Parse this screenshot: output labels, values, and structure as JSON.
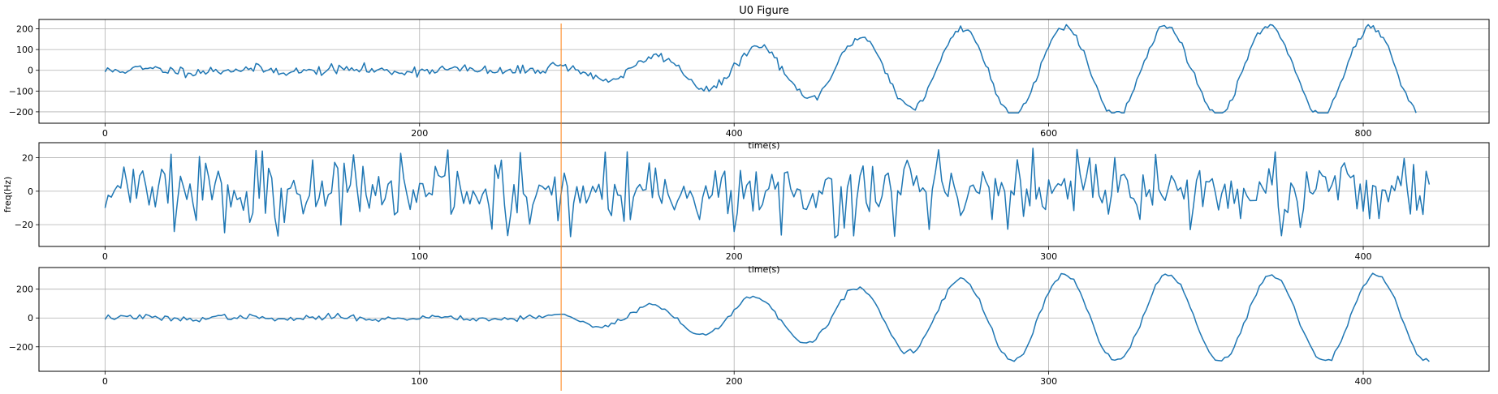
{
  "figure": {
    "title": "U0 Figure",
    "marker_color": "#ff7f0e",
    "series_color": "#1f77b4"
  },
  "chart_data": [
    {
      "type": "line",
      "title": "U0 Figure",
      "xlabel": "time(s)",
      "ylabel": "",
      "xlim": [
        -42,
        880
      ],
      "ylim": [
        -255,
        245
      ],
      "xticks": [
        0,
        200,
        400,
        600,
        800
      ],
      "yticks": [
        -200,
        -100,
        0,
        100,
        200
      ],
      "marker_x": 290,
      "grid": true,
      "series": [
        {
          "shape": "sine",
          "x_start": 0,
          "x_end": 835,
          "x_step": 1.6,
          "pre_end": 280,
          "pre_noise": 12,
          "ramp_start": 280,
          "ramp_end": 560,
          "amp_start": 20,
          "amp_end": 215,
          "period": 65,
          "phase_peak": 545,
          "clip": [
            -205,
            220
          ],
          "noise": 10,
          "seed": 11
        }
      ]
    },
    {
      "type": "line",
      "title": "",
      "xlabel": "time(s)",
      "ylabel": "freq(Hz)",
      "xlim": [
        -21,
        440
      ],
      "ylim": [
        -33,
        29
      ],
      "xticks": [
        0,
        100,
        200,
        300,
        400
      ],
      "yticks": [
        -20,
        0,
        20
      ],
      "marker_x": 146.5,
      "grid": true,
      "series": [
        {
          "shape": "noise",
          "x_start": 0,
          "x_end": 421,
          "x_step": 1.0,
          "std": 9,
          "max": 26,
          "min": -28,
          "seed": 23
        }
      ]
    },
    {
      "type": "line",
      "title": "",
      "xlabel": "",
      "ylabel": "",
      "xlim": [
        -21,
        440
      ],
      "ylim": [
        -370,
        350
      ],
      "xticks": [
        0,
        100,
        200,
        300,
        400
      ],
      "yticks": [
        -200,
        0,
        200
      ],
      "marker_x": 146.5,
      "grid": true,
      "series": [
        {
          "shape": "sine",
          "x_start": 0,
          "x_end": 421,
          "x_step": 1.0,
          "pre_end": 140,
          "pre_noise": 10,
          "ramp_start": 140,
          "ramp_end": 290,
          "amp_start": 30,
          "amp_end": 300,
          "period": 33,
          "phase_peak": 272,
          "clip": [
            -320,
            310
          ],
          "noise": 9,
          "seed": 37
        }
      ]
    }
  ]
}
